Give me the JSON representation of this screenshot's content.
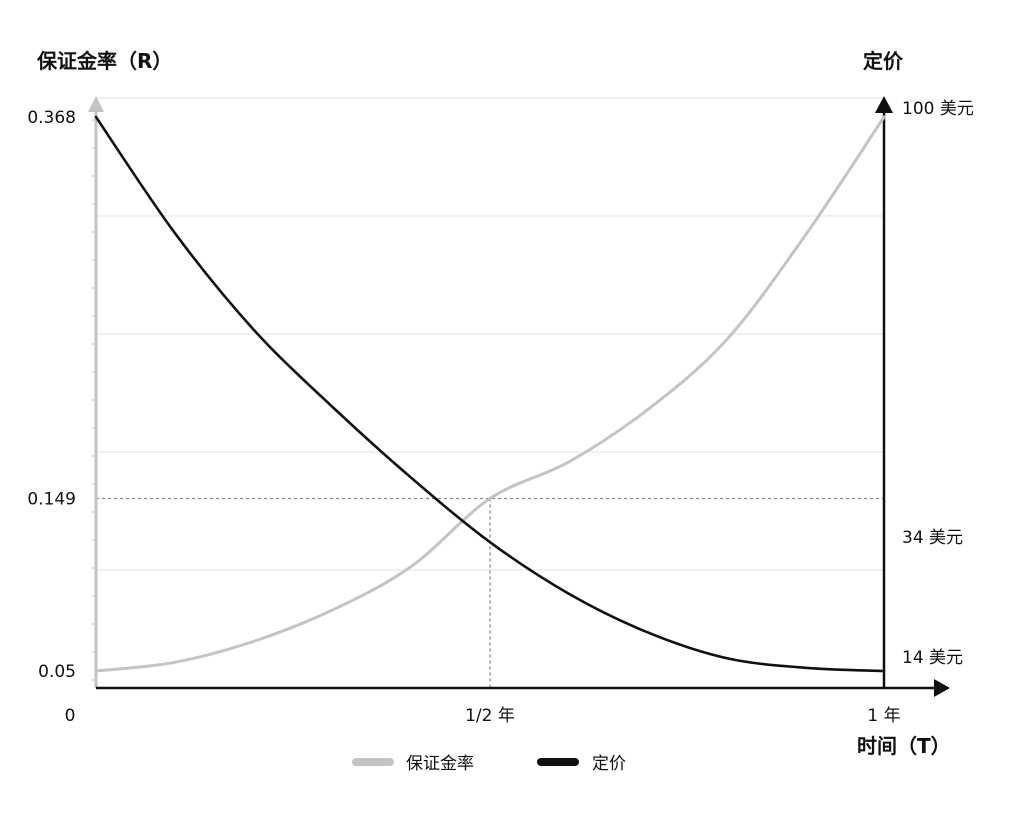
{
  "chart_data": {
    "type": "line",
    "y_left_title": "保证金率（R）",
    "y_right_title": "定价",
    "x_title": "时间（T）",
    "x_ticks": [
      {
        "value": 0,
        "label": "0"
      },
      {
        "value": 0.5,
        "label": "1/2 年"
      },
      {
        "value": 1,
        "label": "1 年"
      }
    ],
    "y_left_ticks": [
      {
        "value": 0.05,
        "label": "0.05"
      },
      {
        "value": 0.149,
        "label": "0.149"
      },
      {
        "value": 0.368,
        "label": "0.368"
      }
    ],
    "y_right_ticks": [
      {
        "value": 14,
        "label": "14 美元"
      },
      {
        "value": 34,
        "label": "34 美元"
      },
      {
        "value": 100,
        "label": "100 美元"
      }
    ],
    "series": [
      {
        "name": "保证金率",
        "axis": "left",
        "color": "#c4c4c4",
        "x": [
          0,
          0.1,
          0.2,
          0.3,
          0.4,
          0.5,
          0.6,
          0.7,
          0.8,
          0.9,
          1
        ],
        "y": [
          0.05,
          0.055,
          0.067,
          0.085,
          0.11,
          0.149,
          0.17,
          0.2,
          0.24,
          0.3,
          0.368
        ]
      },
      {
        "name": "定价",
        "axis": "right",
        "color": "#111111",
        "x": [
          0,
          0.1,
          0.2,
          0.3,
          0.4,
          0.5,
          0.6,
          0.7,
          0.8,
          0.9,
          1
        ],
        "y": [
          100,
          82,
          67,
          55,
          44,
          34,
          26,
          20,
          16,
          14.5,
          14
        ]
      }
    ],
    "highlight_point": {
      "x": 0.5,
      "y_left": 0.149,
      "y_right": 34
    },
    "grid": true,
    "legend": {
      "placement": "bottom-center"
    }
  }
}
